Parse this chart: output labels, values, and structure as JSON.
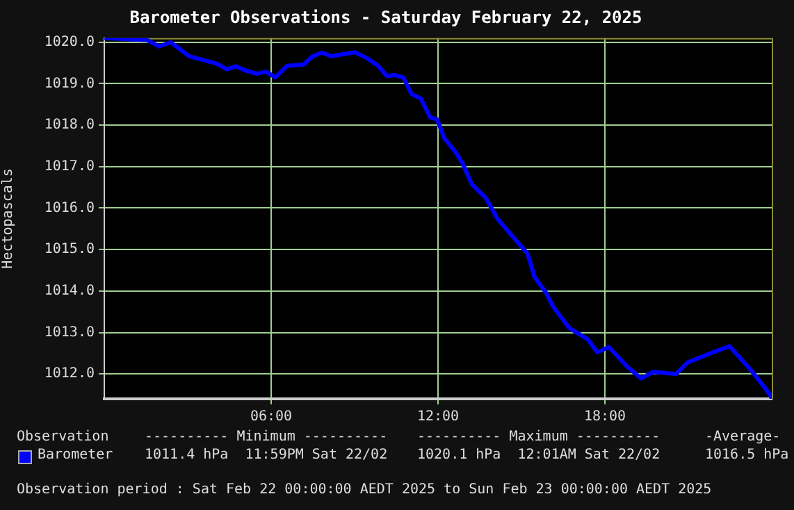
{
  "chart_data": {
    "type": "line",
    "title": "Barometer Observations - Saturday February 22, 2025",
    "ylabel": "Hectopascals",
    "legend": "bottom",
    "legend_title": "Observation",
    "grid": true,
    "marker": "none",
    "line_style": "solid",
    "xlim": [
      0,
      24
    ],
    "xticks": [
      {
        "value": 6,
        "label": "06:00"
      },
      {
        "value": 12,
        "label": "12:00"
      },
      {
        "value": 18,
        "label": "18:00"
      }
    ],
    "ylim": [
      1011.4,
      1020.1
    ],
    "yticks": [
      {
        "value": 1012,
        "label": "1012.0"
      },
      {
        "value": 1013,
        "label": "1013.0"
      },
      {
        "value": 1014,
        "label": "1014.0"
      },
      {
        "value": 1015,
        "label": "1015.0"
      },
      {
        "value": 1016,
        "label": "1016.0"
      },
      {
        "value": 1017,
        "label": "1017.0"
      },
      {
        "value": 1018,
        "label": "1018.0"
      },
      {
        "value": 1019,
        "label": "1019.0"
      },
      {
        "value": 1020,
        "label": "1020.0"
      }
    ],
    "series": [
      {
        "name": "Barometer",
        "color": "#0000ff",
        "x": [
          0,
          1.55,
          1.97,
          2.39,
          3.06,
          3.56,
          4.06,
          4.4,
          4.73,
          5.07,
          5.48,
          5.82,
          6.15,
          6.57,
          7.16,
          7.49,
          7.83,
          8.16,
          8.58,
          9.0,
          9.41,
          9.83,
          10.17,
          10.42,
          10.75,
          11.05,
          11.38,
          11.72,
          11.97,
          12.22,
          12.63,
          12.88,
          13.22,
          13.72,
          14.14,
          14.64,
          15.22,
          15.47,
          15.89,
          16.14,
          16.72,
          17.39,
          17.73,
          18.14,
          18.81,
          19.31,
          19.73,
          20.56,
          20.98,
          21.73,
          22.48,
          23.23,
          23.56,
          23.94,
          24
        ],
        "values": [
          1020.1,
          1020.05,
          1019.9,
          1020.0,
          1019.66,
          1019.57,
          1019.48,
          1019.35,
          1019.42,
          1019.32,
          1019.24,
          1019.29,
          1019.15,
          1019.43,
          1019.46,
          1019.66,
          1019.75,
          1019.66,
          1019.71,
          1019.76,
          1019.63,
          1019.44,
          1019.18,
          1019.21,
          1019.15,
          1018.75,
          1018.64,
          1018.19,
          1018.14,
          1017.69,
          1017.35,
          1017.08,
          1016.57,
          1016.24,
          1015.74,
          1015.35,
          1014.9,
          1014.34,
          1013.95,
          1013.62,
          1013.11,
          1012.83,
          1012.52,
          1012.65,
          1012.17,
          1011.89,
          1012.05,
          1012.0,
          1012.28,
          1012.48,
          1012.67,
          1012.11,
          1011.83,
          1011.5,
          1011.4
        ]
      }
    ],
    "annotations": [
      "---------- Minimum ----------",
      "---------- Maximum ----------",
      "-Average-",
      "1011.4 hPa  11:59PM Sat 22/02",
      "1020.1 hPa  12:01AM Sat 22/02",
      "1016.5 hPa",
      "Observation period : Sat Feb 22 00:00:00 AEDT 2025 to Sun Feb 23 00:00:00 AEDT 2025"
    ]
  }
}
